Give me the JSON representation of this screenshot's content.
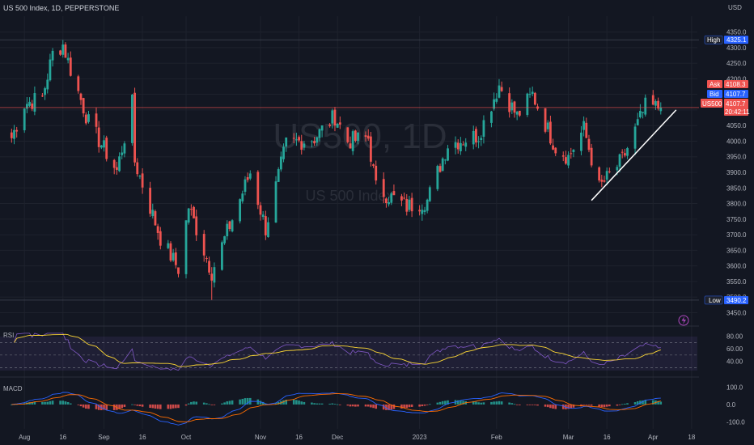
{
  "header": {
    "title": "US 500 Index, 1D, PEPPERSTONE"
  },
  "watermark": {
    "symbol": "US500, 1D",
    "name": "US 500 Index"
  },
  "price_axis": {
    "currency": "USD",
    "ticks": [
      "4350.0",
      "4300.0",
      "4250.0",
      "4200.0",
      "4150.0",
      "4100.0",
      "4050.0",
      "4000.0",
      "3950.0",
      "3900.0",
      "3850.0",
      "3800.0",
      "3750.0",
      "3700.0",
      "3650.0",
      "3600.0",
      "3550.0",
      "3500.0",
      "3450.0"
    ]
  },
  "tags": {
    "high_label": "High",
    "high_value": "4325.1",
    "ask_label": "Ask",
    "ask_value": "4108.3",
    "bid_label": "Bid",
    "bid_value": "4107.7",
    "sym_label": "US500",
    "sym_value": "4107.7",
    "countdown": "20:42:11",
    "low_label": "Low",
    "low_value": "3490.2"
  },
  "time_axis": {
    "labels": [
      "Aug",
      "16",
      "Sep",
      "16",
      "Oct",
      "Nov",
      "16",
      "Dec",
      "2023",
      "Feb",
      "Mar",
      "16",
      "Apr",
      "18"
    ]
  },
  "rsi": {
    "label": "RSI",
    "ticks": [
      "80.00",
      "60.00",
      "40.00"
    ]
  },
  "macd": {
    "label": "MACD",
    "ticks": [
      "100.0",
      "0.0",
      "-100.0"
    ]
  },
  "colors": {
    "up": "#26a69a",
    "down": "#ef5350",
    "background": "#131722",
    "rsi_line": "#7e57c2",
    "rsi_ma": "#fdd835",
    "macd_line": "#2962ff",
    "signal_line": "#ff6d00"
  },
  "chart_data": {
    "type": "candlestick",
    "title": "US 500 Index, 1D, PEPPERSTONE",
    "anchors": [
      [
        "2022-07-27",
        4010
      ],
      [
        "2022-08-01",
        4120
      ],
      [
        "2022-08-08",
        4140
      ],
      [
        "2022-08-12",
        4280
      ],
      [
        "2022-08-16",
        4310
      ],
      [
        "2022-08-19",
        4230
      ],
      [
        "2022-08-26",
        4060
      ],
      [
        "2022-09-06",
        3905
      ],
      [
        "2022-09-12",
        4120
      ],
      [
        "2022-09-13",
        3935
      ],
      [
        "2022-09-23",
        3690
      ],
      [
        "2022-09-30",
        3590
      ],
      [
        "2022-10-04",
        3790
      ],
      [
        "2022-10-13",
        3580
      ],
      [
        "2022-10-21",
        3750
      ],
      [
        "2022-10-28",
        3900
      ],
      [
        "2022-11-03",
        3720
      ],
      [
        "2022-11-11",
        3990
      ],
      [
        "2022-11-22",
        4010
      ],
      [
        "2022-11-30",
        4080
      ],
      [
        "2022-12-05",
        4000
      ],
      [
        "2022-12-13",
        4010
      ],
      [
        "2022-12-16",
        3850
      ],
      [
        "2022-12-28",
        3790
      ],
      [
        "2023-01-05",
        3810
      ],
      [
        "2023-01-13",
        3990
      ],
      [
        "2023-01-25",
        4020
      ],
      [
        "2023-02-02",
        4180
      ],
      [
        "2023-02-09",
        4080
      ],
      [
        "2023-02-15",
        4150
      ],
      [
        "2023-02-24",
        3980
      ],
      [
        "2023-03-01",
        3950
      ],
      [
        "2023-03-07",
        4040
      ],
      [
        "2023-03-13",
        3850
      ],
      [
        "2023-03-22",
        3940
      ],
      [
        "2023-03-31",
        4110
      ],
      [
        "2023-04-06",
        4107.7
      ]
    ],
    "high": 4325.1,
    "low": 3490.2,
    "last": 4107.7,
    "ask": 4108.3,
    "bid": 4107.7,
    "ylim": [
      3420,
      4380
    ],
    "trendline": [
      [
        "2023-03-10",
        3810
      ],
      [
        "2023-04-12",
        4100
      ]
    ],
    "rsi_ylim": [
      20,
      90
    ],
    "rsi_bands": [
      70,
      50,
      30
    ],
    "macd_ylim": [
      -140,
      130
    ]
  }
}
